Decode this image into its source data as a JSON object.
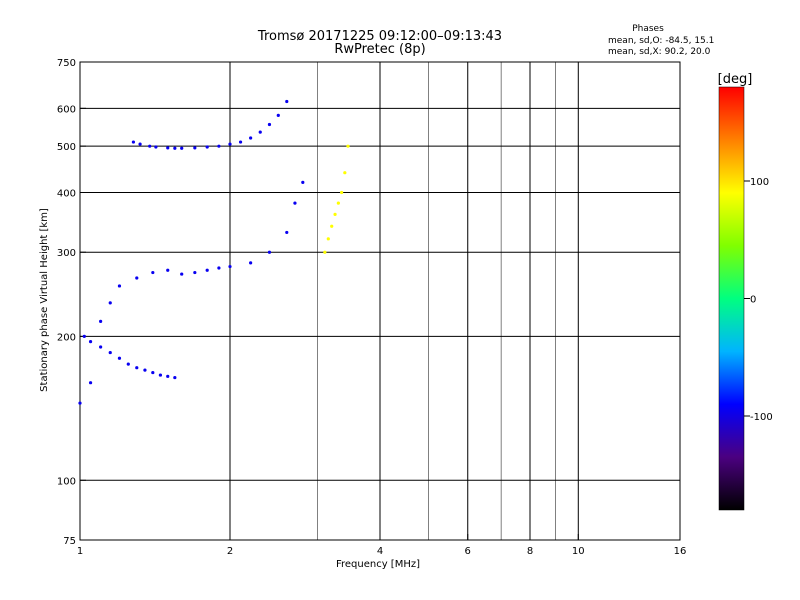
{
  "header": {
    "title": "Tromsø 20171225 09:12:00–09:13:43",
    "subtitle": "RwPretec (8p)"
  },
  "stats": {
    "heading": "Phases",
    "line_o": "mean, sd,O:  -84.5, 15.1",
    "line_x": "mean, sd,X:  90.2, 20.0"
  },
  "chart_data": {
    "type": "scatter",
    "title": "Tromsø 20171225 09:12:00–09:13:43",
    "subtitle": "RwPretec (8p)",
    "xlabel": "Frequency [MHz]",
    "ylabel": "Stationary phase Virtual Height [km]",
    "x_scale": "log",
    "y_scale": "log",
    "xlim": [
      1,
      16
    ],
    "ylim": [
      75,
      750
    ],
    "x_ticks": [
      1,
      2,
      4,
      6,
      8,
      10,
      16
    ],
    "x_tick_labels": [
      "1",
      "2",
      "4",
      "6",
      "8",
      "10",
      "16"
    ],
    "x_grid": [
      2,
      4,
      6,
      8,
      10
    ],
    "x_minor_grid": [
      3,
      5,
      7,
      9
    ],
    "y_ticks": [
      75,
      100,
      200,
      300,
      400,
      500,
      600,
      750
    ],
    "y_tick_labels": [
      "75",
      "100",
      "200",
      "300",
      "400",
      "500",
      "600",
      "750"
    ],
    "y_grid": [
      100,
      200,
      300,
      400,
      500,
      600
    ],
    "grid": true,
    "colorbar": {
      "label": "[deg]",
      "min": -180,
      "max": 180,
      "ticks": [
        100,
        0,
        -100
      ],
      "tick_labels": [
        "100",
        "0",
        "-100"
      ],
      "colormap": [
        "#000000",
        "#4b0080",
        "#0000ff",
        "#00b4ff",
        "#00ff80",
        "#80ff00",
        "#ffff00",
        "#ff8000",
        "#ff0000"
      ]
    },
    "series": [
      {
        "mode": "O",
        "color_phase": -95,
        "region": "F1 trace",
        "x": [
          1.28,
          1.32,
          1.38,
          1.42,
          1.5,
          1.55,
          1.6,
          1.7,
          1.8,
          1.9,
          2.0,
          2.1,
          2.2,
          2.3,
          2.4,
          2.5,
          2.6
        ],
        "y": [
          510,
          505,
          500,
          498,
          496,
          495,
          495,
          496,
          498,
          500,
          505,
          510,
          520,
          535,
          555,
          580,
          620
        ]
      },
      {
        "mode": "O",
        "color_phase": -95,
        "region": "E/low trace",
        "x": [
          1.02,
          1.05,
          1.1,
          1.15,
          1.2,
          1.25,
          1.3,
          1.35,
          1.4,
          1.45,
          1.5,
          1.55
        ],
        "y": [
          200,
          195,
          190,
          185,
          180,
          175,
          172,
          170,
          168,
          166,
          165,
          164
        ]
      },
      {
        "mode": "O",
        "color_phase": -95,
        "region": "spread",
        "x": [
          1.0,
          1.05,
          1.1,
          1.15,
          1.2,
          1.3,
          1.4,
          1.5,
          1.6,
          1.7,
          1.8,
          1.9,
          2.0,
          2.2,
          2.4,
          2.6,
          2.7,
          2.8
        ],
        "y": [
          145,
          160,
          215,
          235,
          255,
          265,
          272,
          275,
          270,
          272,
          275,
          278,
          280,
          285,
          300,
          330,
          380,
          420
        ]
      },
      {
        "mode": "X",
        "color_phase": 90,
        "region": "X trace",
        "x": [
          3.1,
          3.15,
          3.2,
          3.25,
          3.3,
          3.35,
          3.4,
          3.45
        ],
        "y": [
          300,
          320,
          340,
          360,
          380,
          400,
          440,
          500
        ]
      }
    ]
  }
}
